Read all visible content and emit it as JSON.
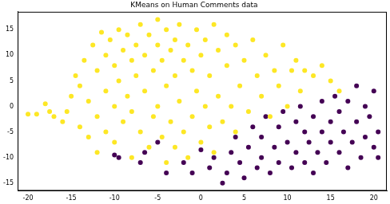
{
  "chart_data": {
    "type": "scatter",
    "title": "KMeans on Human Comments data",
    "xlim": [
      -21.2,
      21.5
    ],
    "xticks": [
      -20,
      -15,
      -10,
      -5,
      0,
      5,
      10,
      15,
      20
    ],
    "ylim": [
      -16.5,
      18.5
    ],
    "yticks": [
      -15,
      -10,
      -5,
      0,
      5,
      10,
      15
    ],
    "grid": false,
    "marker": "circle",
    "series": [
      {
        "color": "#fde725",
        "x": [
          -20,
          -19,
          -18,
          -17.5,
          -17,
          -16,
          -15.5,
          -15,
          -14.5,
          -14,
          -14,
          -13.5,
          -13,
          -13,
          -12.5,
          -12,
          -12,
          -12,
          -11.5,
          -11,
          -11,
          -11,
          -10.5,
          -10,
          -10,
          -10,
          -9.5,
          -9.5,
          -9,
          -9,
          -8.5,
          -8.5,
          -8,
          -8,
          -8,
          -7.5,
          -7.5,
          -7,
          -7,
          -6.5,
          -6.5,
          -6,
          -6,
          -5.5,
          -5.5,
          -5,
          -5,
          -5,
          -4.5,
          -4.5,
          -4,
          -4,
          -4,
          -3.5,
          -3.5,
          -3,
          -3,
          -3,
          -2.5,
          -2.5,
          -2,
          -2,
          -1.5,
          -1.5,
          -1,
          -1,
          -0.5,
          -0.5,
          0,
          0,
          0.5,
          0.5,
          1,
          1,
          1.5,
          1.5,
          2,
          2,
          2.5,
          3,
          3,
          3.5,
          4,
          4,
          4.5,
          5,
          5.5,
          6,
          6.5,
          7,
          7.5,
          8,
          8.5,
          9,
          9.5,
          10,
          10.5,
          11,
          11.5,
          12,
          13,
          14,
          15,
          16
        ],
        "y": [
          -1.5,
          -1.5,
          0.5,
          -1,
          -2,
          -3,
          -1,
          2,
          6,
          4,
          -4,
          9,
          1,
          -6,
          12,
          7,
          -2,
          -9,
          14.5,
          10,
          3,
          -5,
          13,
          8,
          0,
          -7,
          15,
          5,
          11,
          -3,
          14,
          2,
          9,
          -1,
          -10,
          12,
          6,
          16,
          -5,
          10,
          3,
          14,
          -8,
          7,
          -2,
          17,
          12,
          0,
          9,
          -6,
          15,
          4,
          -11,
          11,
          -3,
          13,
          6,
          -8,
          16,
          1,
          9,
          -5,
          12,
          -10,
          7,
          -2,
          15,
          3,
          10,
          -7,
          13,
          0,
          6,
          -4,
          16,
          -9,
          11,
          2,
          -3,
          8,
          14,
          0,
          12,
          -5,
          4,
          9,
          -1,
          13,
          6,
          2,
          10,
          -2,
          7,
          4,
          12,
          0,
          7,
          9,
          3,
          7,
          6,
          8,
          5,
          3
        ]
      },
      {
        "color": "#440154",
        "x": [
          -10,
          -9.5,
          -7,
          -6.5,
          -5,
          -4,
          -2,
          -1,
          0,
          1,
          1.5,
          2.5,
          3,
          3.5,
          4,
          4.5,
          5,
          5.5,
          6,
          6.5,
          7,
          7,
          7.5,
          8,
          8.5,
          9,
          9,
          9.5,
          10,
          10.5,
          11,
          11,
          11.5,
          12,
          12,
          12.5,
          13,
          13,
          13.5,
          14,
          14,
          14.5,
          15,
          15,
          15.5,
          16,
          16,
          16.5,
          17,
          17,
          17.5,
          18,
          18,
          18.5,
          19,
          19,
          19.5,
          20,
          20,
          20.5,
          20.5
        ],
        "y": [
          -9.5,
          -10,
          -11,
          -9,
          -7,
          -13,
          -11,
          -13,
          -8.5,
          -12,
          -10,
          -15,
          -13,
          -9,
          -6,
          -11,
          -14,
          -8,
          -4,
          -12,
          -10,
          -6,
          -2,
          -13,
          -8,
          -4,
          -11,
          -1,
          -7,
          -12,
          -3,
          -9,
          0,
          -5,
          -11,
          -7,
          -2,
          -13,
          -9,
          -5,
          1,
          -11,
          -7,
          -3,
          2,
          -9,
          -1,
          -5,
          -12,
          1,
          -7,
          -3,
          4,
          -10,
          -6,
          0,
          -2,
          -8,
          3,
          -10,
          -5
        ]
      }
    ]
  }
}
